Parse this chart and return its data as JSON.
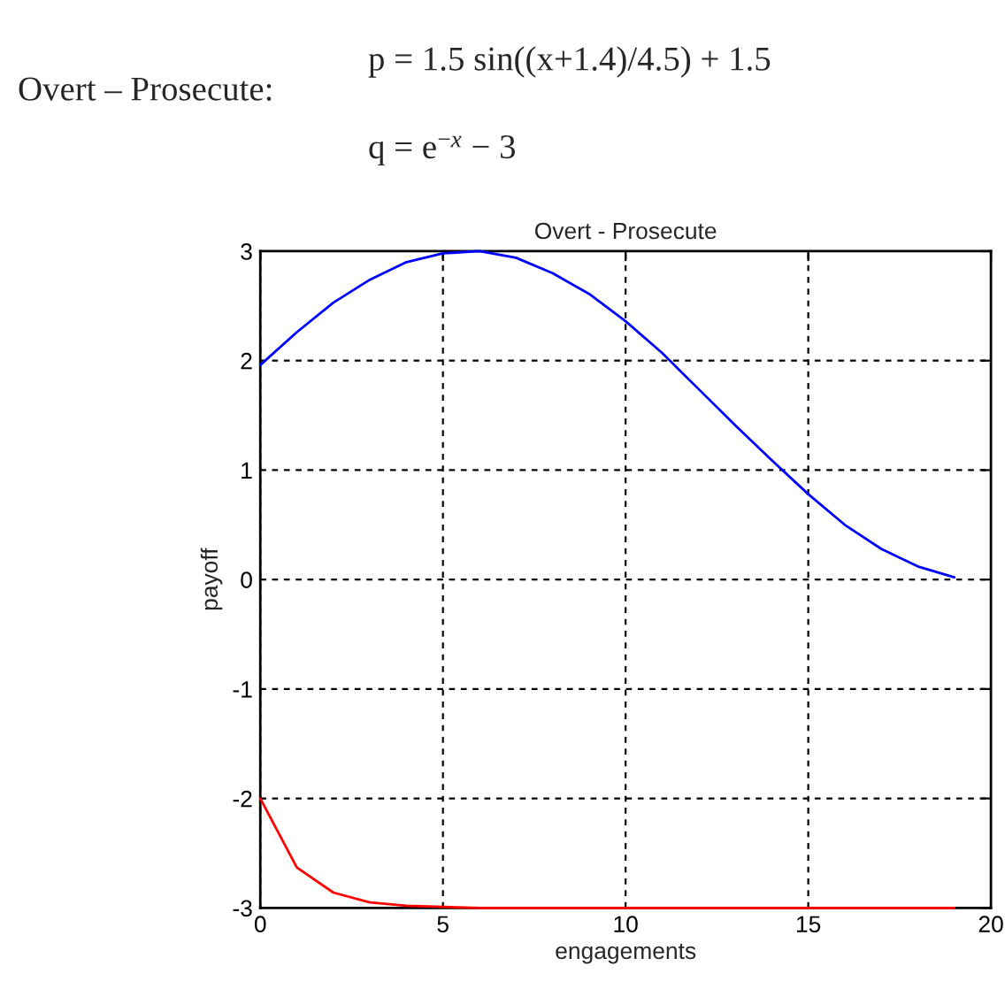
{
  "chart_data": {
    "type": "line",
    "title": "Overt - Prosecute",
    "xlabel": "engagements",
    "ylabel": "payoff",
    "annotations": [
      "Overt – Prosecute:",
      "p = 1.5 sin((x+1.4)/4.5) + 1.5",
      "q = e$^{−x}$ − 3"
    ],
    "x": [
      0,
      1,
      2,
      3,
      4,
      5,
      6,
      7,
      8,
      9,
      10,
      11,
      12,
      13,
      14,
      15,
      16,
      17,
      18,
      19
    ],
    "series": [
      {
        "color": "#0000ff",
        "values": [
          1.96,
          2.26,
          2.53,
          2.74,
          2.9,
          2.98,
          3.0,
          2.94,
          2.8,
          2.61,
          2.36,
          2.07,
          1.74,
          1.41,
          1.09,
          0.78,
          0.5,
          0.28,
          0.12,
          0.02
        ]
      },
      {
        "color": "#ff0000",
        "values": [
          -2.0,
          -2.63,
          -2.86,
          -2.95,
          -2.98,
          -2.99,
          -3.0,
          -3.0,
          -3.0,
          -3.0,
          -3.0,
          -3.0,
          -3.0,
          -3.0,
          -3.0,
          -3.0,
          -3.0,
          -3.0,
          -3.0,
          -3.0
        ]
      }
    ],
    "xlim": [
      0,
      20
    ],
    "ylim": [
      -3,
      3
    ],
    "xticks": [
      0,
      5,
      10,
      15,
      20
    ],
    "yticks": [
      -3,
      -2,
      -1,
      0,
      1,
      2,
      3
    ],
    "grid": true,
    "marker": "none",
    "line_style": "solid"
  }
}
